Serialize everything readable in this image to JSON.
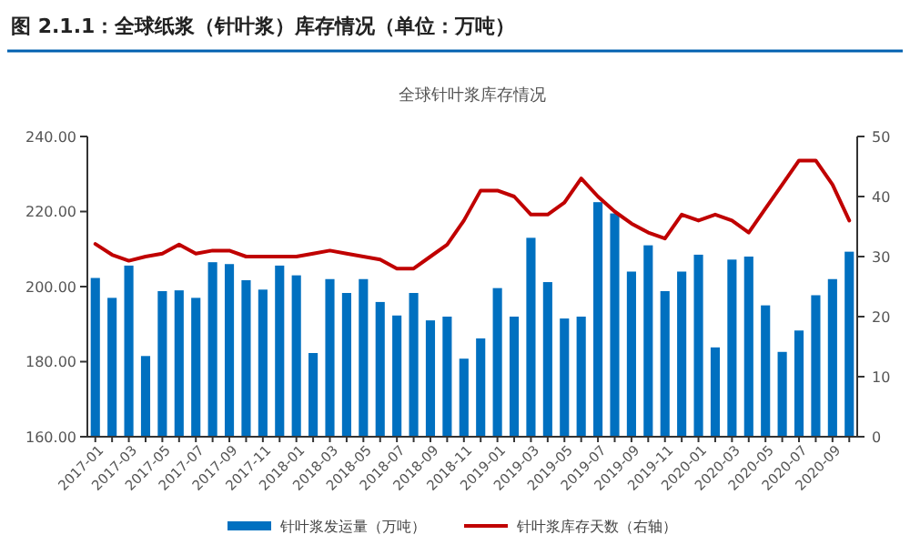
{
  "chart_data": {
    "type": "bar",
    "title": "图 2.1.1：全球纸浆（针叶浆）库存情况（单位：万吨）",
    "subtitle": "全球针叶浆库存情况",
    "categories": [
      "2017-01",
      null,
      "2017-03",
      null,
      "2017-05",
      null,
      "2017-07",
      null,
      "2017-09",
      null,
      "2017-11",
      null,
      "2018-01",
      null,
      "2018-03",
      null,
      "2018-05",
      null,
      "2018-07",
      null,
      "2018-09",
      null,
      "2018-11",
      null,
      "2019-01",
      null,
      "2019-03",
      null,
      "2019-05",
      null,
      "2019-07",
      null,
      "2019-09",
      null,
      "2019-11",
      null,
      "2020-01",
      null,
      "2020-03",
      null,
      "2020-05",
      null,
      "2020-07",
      null,
      "2020-09",
      null
    ],
    "series": [
      {
        "name": "针叶浆发运量（万吨）",
        "color": "#0070c0",
        "values": [
          202.3,
          197,
          205.6,
          181.5,
          198.8,
          199,
          197,
          206.5,
          206,
          201.7,
          199.2,
          205.6,
          203,
          182.3,
          202,
          198.3,
          202,
          195.9,
          192.3,
          198.3,
          191,
          192,
          180.8,
          186.2,
          199.6,
          192,
          213,
          201.2,
          191.5,
          192,
          222.5,
          219.5,
          204,
          211,
          198.8,
          204,
          208.5,
          183.8,
          207.2,
          208,
          195,
          182.6,
          188.3,
          197.7,
          202,
          209.3
        ]
      },
      {
        "name": "针叶浆库存天数（右轴）",
        "type": "line",
        "axis": "y2",
        "color": "#c00000",
        "values": [
          32.1,
          30.3,
          29.3,
          30,
          30.5,
          32,
          30.5,
          31,
          31,
          30,
          30,
          30,
          30,
          30.5,
          31,
          30.5,
          30,
          29.5,
          28,
          28,
          30,
          32,
          36,
          41,
          41,
          40,
          37,
          37,
          39,
          43,
          40,
          37.5,
          35.5,
          34,
          33,
          37,
          36,
          37,
          36,
          34,
          38,
          42,
          46,
          46,
          42,
          36
        ]
      }
    ],
    "ylim": [
      160,
      240
    ],
    "yticks": [
      {
        "value": 160,
        "label": "160.00"
      },
      {
        "value": 180,
        "label": "180.00"
      },
      {
        "value": 200,
        "label": "200.00"
      },
      {
        "value": 220,
        "label": "220.00"
      },
      {
        "value": 240,
        "label": "240.00"
      }
    ],
    "y2lim": [
      0,
      50
    ],
    "y2ticks": [
      0,
      10,
      20,
      30,
      40,
      50
    ],
    "legend": "bottom"
  }
}
